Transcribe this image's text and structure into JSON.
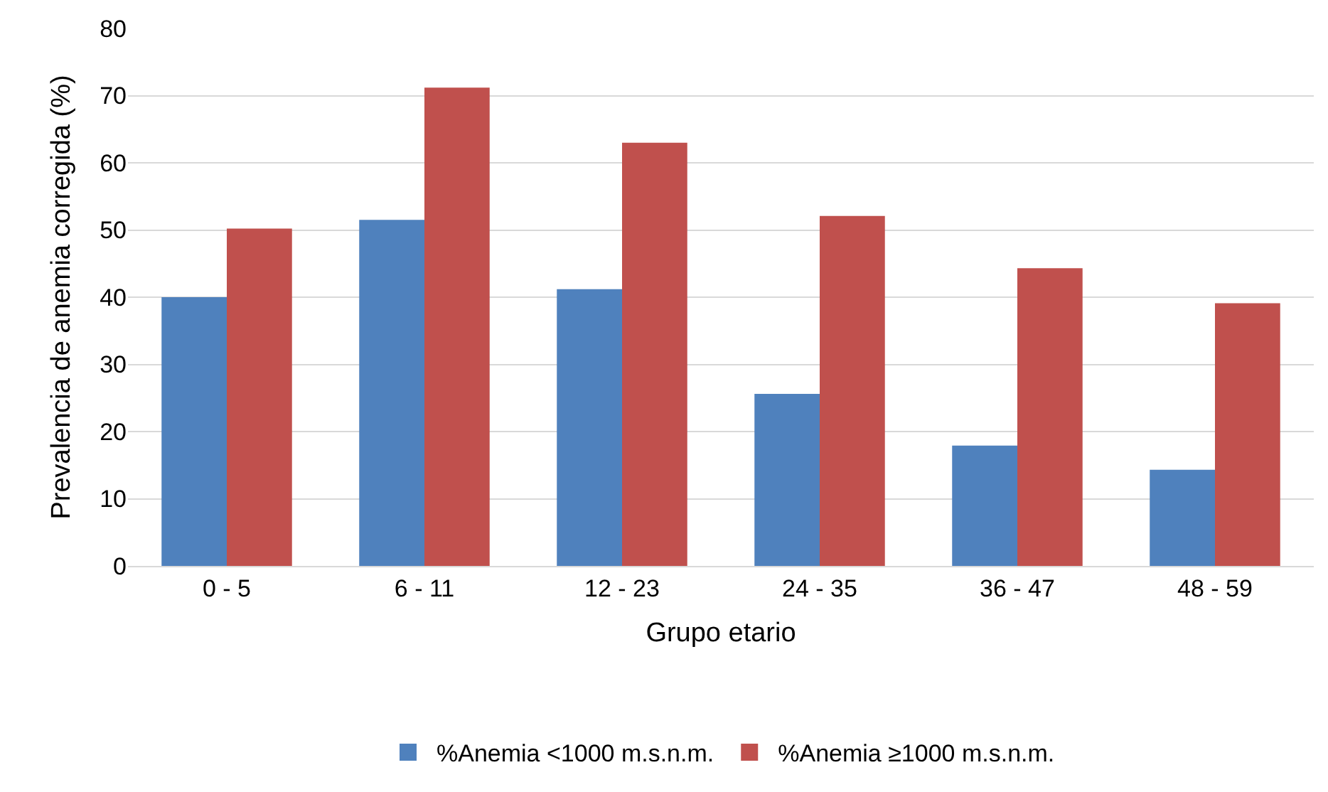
{
  "chart_data": {
    "type": "bar",
    "xlabel": "Grupo etario",
    "ylabel": "Prevalencia de anemia corregida (%)",
    "categories": [
      "0 - 5",
      "6 - 11",
      "12 - 23",
      "24 - 35",
      "36 - 47",
      "48 - 59"
    ],
    "series": [
      {
        "name": "%Anemia <1000 m.s.n.m.",
        "color": "#4f81bd",
        "values": [
          40,
          51.5,
          41.2,
          25.6,
          17.9,
          14.3
        ]
      },
      {
        "name": "%Anemia ≥1000 m.s.n.m.",
        "color": "#c0504d",
        "values": [
          50.2,
          71.2,
          63.0,
          52.1,
          44.3,
          39.1
        ]
      }
    ],
    "ylim": [
      0,
      80
    ],
    "yticks": [
      0,
      10,
      20,
      30,
      40,
      50,
      60,
      70,
      80
    ],
    "grid": "y",
    "legend": "bottom"
  }
}
